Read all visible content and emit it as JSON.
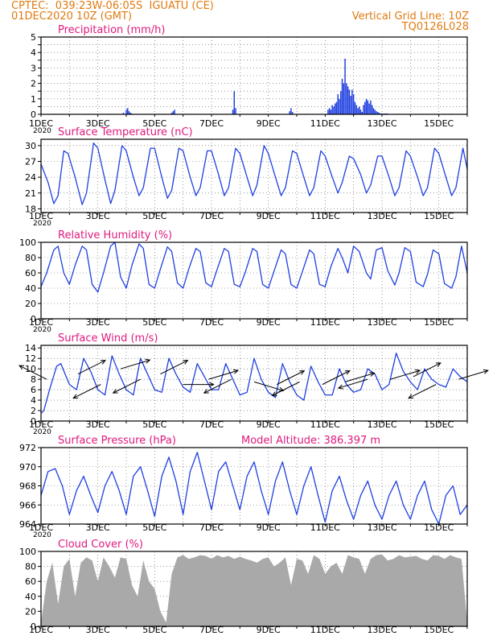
{
  "header": {
    "line1_left": "CPTEC:  039:23W-06:05S  IGUATU (CE)",
    "line2_left": "01DEC2020 10Z (GMT)",
    "line1_right": "Vertical Grid Line: 10Z",
    "line2_right": "TQ0126L028"
  },
  "colors": {
    "header": "#e07a10",
    "panel_title": "#e0197d",
    "series": "#1f3fe0",
    "cloud": "#a9a9a9",
    "wind_arrow": "#000000"
  },
  "x_axis": {
    "tick_labels": [
      "1DEC",
      "3DEC",
      "5DEC",
      "7DEC",
      "9DEC",
      "11DEC",
      "13DEC",
      "15DEC"
    ],
    "clipped_label": "2020",
    "range_days": [
      0,
      15
    ]
  },
  "chart_data": [
    {
      "type": "bar",
      "title": "Precipitation (mm/h)",
      "ylim": [
        0,
        5
      ],
      "yticks": [
        0,
        0.5,
        1,
        1.5,
        2,
        2.5,
        3,
        3.5,
        4,
        4.5,
        5
      ],
      "ytick_labels": [
        "0",
        "",
        "1",
        "",
        "2",
        "",
        "3",
        "",
        "4",
        "",
        "5"
      ],
      "x": [
        2.9,
        3.0,
        3.05,
        3.1,
        3.15,
        3.2,
        4.6,
        4.65,
        4.7,
        6.75,
        6.8,
        6.85,
        8.75,
        8.8,
        8.85,
        10.1,
        10.15,
        10.2,
        10.25,
        10.3,
        10.35,
        10.4,
        10.45,
        10.5,
        10.55,
        10.6,
        10.65,
        10.7,
        10.75,
        10.8,
        10.85,
        10.9,
        10.95,
        11.0,
        11.05,
        11.1,
        11.15,
        11.2,
        11.25,
        11.3,
        11.35,
        11.4,
        11.45,
        11.5,
        11.55,
        11.6,
        11.65,
        11.7,
        11.75,
        11.8,
        11.85,
        11.9,
        11.95,
        12.0,
        12.05,
        12.1,
        12.15,
        12.2
      ],
      "values": [
        0.1,
        0.3,
        0.4,
        0.2,
        0.1,
        0.05,
        0.1,
        0.2,
        0.3,
        0.3,
        1.5,
        0.4,
        0.2,
        0.4,
        0.15,
        0.3,
        0.4,
        0.3,
        0.6,
        0.5,
        0.7,
        0.8,
        1.3,
        1.0,
        1.5,
        2.3,
        2.0,
        3.6,
        2.0,
        1.8,
        1.6,
        1.2,
        1.6,
        1.3,
        0.8,
        0.6,
        0.4,
        0.5,
        0.3,
        0.15,
        0.6,
        0.8,
        1.0,
        0.9,
        0.7,
        0.9,
        0.6,
        0.4,
        0.3,
        0.2,
        0.15,
        0.1,
        0.05,
        0.05,
        0.05,
        0.05,
        0.05,
        0.05
      ]
    },
    {
      "type": "line",
      "title": "Surface Temperature (nC)",
      "ylim": [
        17.3,
        31.2
      ],
      "yticks": [
        18,
        21,
        24,
        27,
        30
      ],
      "x": [
        0.0,
        0.25,
        0.45,
        0.6,
        0.8,
        0.95,
        1.2,
        1.45,
        1.6,
        1.85,
        2.0,
        2.25,
        2.45,
        2.6,
        2.85,
        3.0,
        3.25,
        3.45,
        3.6,
        3.85,
        4.0,
        4.25,
        4.45,
        4.6,
        4.85,
        5.0,
        5.25,
        5.45,
        5.6,
        5.85,
        6.0,
        6.25,
        6.45,
        6.6,
        6.85,
        7.0,
        7.25,
        7.45,
        7.6,
        7.85,
        8.0,
        8.25,
        8.45,
        8.6,
        8.85,
        9.0,
        9.25,
        9.45,
        9.6,
        9.85,
        10.0,
        10.25,
        10.45,
        10.6,
        10.85,
        11.0,
        11.25,
        11.45,
        11.6,
        11.85,
        12.0,
        12.25,
        12.45,
        12.6,
        12.85,
        13.0,
        13.25,
        13.45,
        13.6,
        13.85,
        14.0,
        14.25,
        14.45,
        14.6,
        14.85,
        15.0
      ],
      "values": [
        26.5,
        23.0,
        19.0,
        20.5,
        29.0,
        28.5,
        24.0,
        18.8,
        21.0,
        30.5,
        29.5,
        23.5,
        19.0,
        21.5,
        30.0,
        29.0,
        24.0,
        20.5,
        22.0,
        29.5,
        29.5,
        24.0,
        20.0,
        21.5,
        29.5,
        29.0,
        24.0,
        20.5,
        22.0,
        29.0,
        29.0,
        24.5,
        20.5,
        22.0,
        29.5,
        28.5,
        24.0,
        20.5,
        22.5,
        30.0,
        28.5,
        24.0,
        20.5,
        22.0,
        29.0,
        28.5,
        24.0,
        20.5,
        22.0,
        29.0,
        28.0,
        24.0,
        21.0,
        23.0,
        28.0,
        27.5,
        24.5,
        21.0,
        22.5,
        28.0,
        28.0,
        24.0,
        20.5,
        22.0,
        29.0,
        28.0,
        24.0,
        20.5,
        22.0,
        29.5,
        28.5,
        24.0,
        20.5,
        22.0,
        29.5,
        25.5
      ]
    },
    {
      "type": "line",
      "title": "Relative Humidity (%)",
      "ylim": [
        0,
        100
      ],
      "yticks": [
        0,
        20,
        40,
        60,
        80,
        100
      ],
      "x": [
        0.0,
        0.2,
        0.45,
        0.6,
        0.8,
        1.0,
        1.2,
        1.45,
        1.6,
        1.8,
        2.0,
        2.2,
        2.45,
        2.6,
        2.8,
        3.0,
        3.2,
        3.45,
        3.6,
        3.8,
        4.0,
        4.2,
        4.45,
        4.6,
        4.8,
        5.0,
        5.2,
        5.45,
        5.6,
        5.8,
        6.0,
        6.2,
        6.45,
        6.6,
        6.8,
        7.0,
        7.2,
        7.45,
        7.6,
        7.8,
        8.0,
        8.2,
        8.45,
        8.6,
        8.8,
        9.0,
        9.2,
        9.45,
        9.6,
        9.8,
        10.0,
        10.2,
        10.45,
        10.6,
        10.8,
        11.0,
        11.2,
        11.45,
        11.6,
        11.8,
        12.0,
        12.2,
        12.45,
        12.6,
        12.8,
        13.0,
        13.2,
        13.45,
        13.6,
        13.8,
        14.0,
        14.2,
        14.45,
        14.6,
        14.8,
        15.0
      ],
      "values": [
        42.0,
        60.0,
        90.0,
        95.0,
        60.0,
        45.0,
        70.0,
        95.0,
        90.0,
        45.0,
        35.0,
        60.0,
        95.0,
        100.0,
        55.0,
        40.0,
        70.0,
        98.0,
        92.0,
        45.0,
        40.0,
        65.0,
        94.0,
        88.0,
        47.0,
        40.0,
        65.0,
        92.0,
        88.0,
        47.0,
        42.0,
        65.0,
        92.0,
        88.0,
        45.0,
        42.0,
        62.0,
        92.0,
        88.0,
        45.0,
        40.0,
        62.0,
        90.0,
        85.0,
        45.0,
        40.0,
        62.0,
        90.0,
        85.0,
        45.0,
        42.0,
        68.0,
        92.0,
        80.0,
        60.0,
        95.0,
        88.0,
        60.0,
        52.0,
        90.0,
        93.0,
        63.0,
        44.0,
        60.0,
        93.0,
        88.0,
        48.0,
        42.0,
        58.0,
        90.0,
        85.0,
        46.0,
        40.0,
        55.0,
        95.0,
        60.0
      ]
    },
    {
      "type": "line",
      "title": "Surface Wind (m/s)",
      "ylim": [
        0,
        14.5
      ],
      "yticks": [
        0,
        2,
        4,
        6,
        8,
        10,
        12,
        14
      ],
      "x": [
        0.0,
        0.1,
        0.3,
        0.55,
        0.7,
        0.85,
        1.0,
        1.25,
        1.5,
        1.75,
        2.0,
        2.25,
        2.5,
        2.75,
        3.0,
        3.25,
        3.5,
        3.75,
        4.0,
        4.25,
        4.5,
        4.75,
        5.0,
        5.25,
        5.5,
        5.75,
        6.0,
        6.25,
        6.5,
        6.75,
        7.0,
        7.25,
        7.5,
        7.75,
        8.0,
        8.25,
        8.5,
        8.75,
        9.0,
        9.25,
        9.5,
        9.75,
        10.0,
        10.25,
        10.5,
        10.75,
        11.0,
        11.25,
        11.5,
        11.75,
        12.0,
        12.25,
        12.5,
        12.75,
        13.0,
        13.25,
        13.5,
        13.75,
        14.0,
        14.25,
        14.5,
        14.75,
        15.0
      ],
      "values": [
        1.5,
        2.0,
        6.0,
        10.5,
        11.0,
        9.0,
        7.0,
        6.0,
        12.0,
        9.5,
        6.0,
        5.0,
        12.5,
        9.0,
        6.0,
        5.0,
        12.0,
        9.0,
        6.0,
        5.5,
        12.0,
        9.0,
        6.5,
        5.5,
        11.0,
        8.5,
        6.0,
        6.0,
        11.0,
        8.0,
        5.0,
        5.5,
        12.0,
        8.0,
        5.5,
        4.5,
        11.0,
        7.5,
        5.0,
        4.0,
        10.5,
        7.5,
        5.0,
        5.0,
        10.0,
        7.0,
        5.5,
        6.0,
        10.0,
        9.0,
        6.0,
        7.0,
        13.0,
        9.5,
        7.5,
        6.0,
        10.0,
        8.0,
        7.0,
        6.5,
        10.0,
        8.5,
        7.5
      ],
      "arrows": {
        "x": [
          0.2,
          1.3,
          2.1,
          2.8,
          3.5,
          4.2,
          5.0,
          5.9,
          6.7,
          7.5,
          8.3,
          9.1,
          9.9,
          10.7,
          11.5,
          12.3,
          13.1,
          13.9,
          14.7
        ],
        "y": [
          8,
          9,
          7,
          10,
          8,
          9,
          7,
          8,
          8,
          7.5,
          7,
          7.5,
          7,
          7.5,
          8,
          8,
          8.5,
          7,
          8
        ],
        "u": [
          -1.0,
          1.0,
          -1.0,
          1.0,
          -1.0,
          1.0,
          0.8,
          1.0,
          -1.0,
          1.0,
          1.0,
          -1.0,
          1.0,
          1.0,
          -1.0,
          1.0,
          1.0,
          -1.0,
          1.0
        ],
        "v": [
          0.5,
          0.5,
          -0.5,
          0.3,
          -0.5,
          0.5,
          0.0,
          0.3,
          -0.5,
          -0.3,
          0.5,
          -0.5,
          0.5,
          0.3,
          -0.3,
          0.3,
          0.5,
          -0.5,
          0.3
        ]
      }
    },
    {
      "type": "line",
      "title": "Surface Pressure (hPa)",
      "annotation": "Model Altitude: 386.397 m",
      "ylim": [
        964,
        972
      ],
      "yticks": [
        964,
        966,
        968,
        970,
        972
      ],
      "x": [
        0.0,
        0.25,
        0.5,
        0.75,
        1.0,
        1.25,
        1.5,
        1.75,
        2.0,
        2.25,
        2.5,
        2.75,
        3.0,
        3.25,
        3.5,
        3.75,
        4.0,
        4.25,
        4.5,
        4.75,
        5.0,
        5.25,
        5.5,
        5.75,
        6.0,
        6.25,
        6.5,
        6.75,
        7.0,
        7.25,
        7.5,
        7.75,
        8.0,
        8.25,
        8.5,
        8.75,
        9.0,
        9.25,
        9.5,
        9.75,
        10.0,
        10.25,
        10.5,
        10.75,
        11.0,
        11.25,
        11.5,
        11.75,
        12.0,
        12.25,
        12.5,
        12.75,
        13.0,
        13.25,
        13.5,
        13.75,
        14.0,
        14.25,
        14.5,
        14.75,
        15.0
      ],
      "values": [
        967.0,
        969.5,
        969.8,
        968.0,
        965.0,
        967.5,
        969.0,
        967.0,
        965.2,
        968.0,
        969.5,
        967.5,
        965.0,
        969.0,
        970.0,
        967.5,
        964.8,
        969.0,
        971.0,
        968.5,
        965.0,
        969.5,
        971.5,
        968.5,
        965.5,
        969.5,
        970.5,
        968.0,
        965.5,
        969.0,
        970.5,
        967.5,
        965.0,
        968.5,
        970.5,
        967.5,
        965.0,
        968.0,
        970.0,
        967.0,
        964.2,
        967.5,
        969.0,
        966.5,
        964.5,
        967.0,
        968.5,
        966.0,
        964.5,
        967.0,
        968.5,
        966.0,
        964.5,
        967.0,
        968.5,
        965.5,
        964.0,
        967.0,
        968.0,
        965.0,
        966.0
      ]
    },
    {
      "type": "area",
      "title": "Cloud Cover (%)",
      "ylim": [
        0,
        100
      ],
      "yticks": [
        0,
        20,
        40,
        60,
        80,
        100
      ],
      "x": [
        0.0,
        0.2,
        0.4,
        0.6,
        0.8,
        1.0,
        1.2,
        1.4,
        1.6,
        1.8,
        2.0,
        2.2,
        2.4,
        2.6,
        2.8,
        3.0,
        3.2,
        3.4,
        3.6,
        3.8,
        4.0,
        4.2,
        4.4,
        4.6,
        4.8,
        5.0,
        5.2,
        5.4,
        5.6,
        5.8,
        6.0,
        6.2,
        6.4,
        6.6,
        6.8,
        7.0,
        7.2,
        7.4,
        7.6,
        7.8,
        8.0,
        8.2,
        8.4,
        8.6,
        8.8,
        9.0,
        9.2,
        9.4,
        9.6,
        9.8,
        10.0,
        10.2,
        10.4,
        10.6,
        10.8,
        11.0,
        11.2,
        11.4,
        11.6,
        11.8,
        12.0,
        12.2,
        12.4,
        12.6,
        12.8,
        13.0,
        13.2,
        13.4,
        13.6,
        13.8,
        14.0,
        14.2,
        14.4,
        14.6,
        14.8,
        15.0
      ],
      "values": [
        5,
        60,
        85,
        30,
        80,
        90,
        40,
        85,
        92,
        88,
        60,
        92,
        80,
        65,
        92,
        90,
        55,
        40,
        88,
        60,
        50,
        20,
        5,
        70,
        92,
        95,
        90,
        92,
        95,
        94,
        90,
        95,
        92,
        94,
        90,
        93,
        90,
        88,
        85,
        90,
        92,
        80,
        85,
        92,
        55,
        90,
        88,
        70,
        95,
        90,
        70,
        80,
        85,
        70,
        95,
        92,
        90,
        70,
        90,
        95,
        96,
        88,
        90,
        95,
        92,
        93,
        94,
        90,
        88,
        95,
        94,
        90,
        95,
        92,
        90,
        5
      ]
    }
  ]
}
